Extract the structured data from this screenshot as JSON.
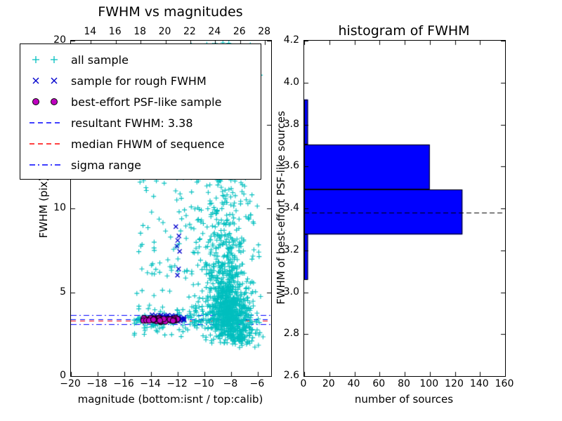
{
  "chart_data": [
    {
      "type": "scatter",
      "title": "FWHM vs magnitudes",
      "xlabel": "magnitude (bottom:isnt / top:calib)",
      "ylabel": "FWHM (pix)",
      "xlim": [
        -20,
        -5
      ],
      "ylim": [
        0,
        20
      ],
      "x_ticks_bottom": [
        -20,
        -18,
        -16,
        -14,
        -12,
        -10,
        -8,
        -6
      ],
      "x_ticks_top": {
        "lim": [
          12.4,
          28.5
        ],
        "ticks": [
          14,
          16,
          18,
          20,
          22,
          24,
          26,
          28
        ]
      },
      "y_ticks": [
        0,
        5,
        10,
        15,
        20
      ],
      "grid": false,
      "series": [
        {
          "name": "all sample",
          "marker": "plus",
          "color": "#00bfbf",
          "clusters": [
            {
              "n": 650,
              "x": [
                "gauss",
                -8.2,
                0.75
              ],
              "y": [
                "gauss",
                3.9,
                1.0
              ],
              "yclip": [
                1.9,
                7.5
              ]
            },
            {
              "n": 320,
              "x": [
                "gauss",
                -8.5,
                1.0
              ],
              "y": [
                "gauss",
                6.8,
                2.0
              ],
              "yclip": [
                2.2,
                13
              ]
            },
            {
              "n": 120,
              "x": [
                "gauss",
                -8.8,
                1.2
              ],
              "y": [
                "uniform",
                9,
                16
              ]
            },
            {
              "n": 55,
              "x": [
                "gauss",
                -8.9,
                1.3
              ],
              "y": [
                "uniform",
                15.5,
                20
              ]
            },
            {
              "n": 200,
              "x": [
                "uniform",
                -15.3,
                -6.0
              ],
              "y": [
                "gauss",
                3.35,
                0.45
              ]
            },
            {
              "n": 85,
              "x": [
                "uniform",
                -15.1,
                -10.3
              ],
              "y": [
                "uniform",
                4.5,
                12.5
              ]
            },
            {
              "n": 75,
              "x": [
                "gauss",
                -7.2,
                0.8
              ],
              "y": [
                "gauss",
                2.4,
                0.35
              ],
              "yclip": [
                1.6,
                3.2
              ]
            }
          ]
        },
        {
          "name": "sample for rough FWHM",
          "marker": "x",
          "color": "#0000cd",
          "clusters": [
            {
              "n": 7,
              "x": [
                "gauss",
                -12.05,
                0.12
              ],
              "y": [
                "uniform",
                5.7,
                9.2
              ]
            },
            {
              "n": 70,
              "x": [
                "uniform",
                -14.6,
                -11.5
              ],
              "y": [
                "gauss",
                3.42,
                0.1
              ]
            }
          ]
        },
        {
          "name": "best-effort PSF-like sample",
          "marker": "circle",
          "color": "#bf00bf",
          "edge": "#000000",
          "clusters": [
            {
              "n": 50,
              "x": [
                "uniform",
                -14.6,
                -12.0
              ],
              "y": [
                "gauss",
                3.38,
                0.05
              ]
            }
          ]
        }
      ],
      "lines": [
        {
          "name": "resultant-fwhm-line",
          "y": 3.38,
          "color": "#0000ff",
          "style": "dashed"
        },
        {
          "name": "median-fwhm-line",
          "y": 3.3,
          "color": "#ff0000",
          "style": "dashed"
        },
        {
          "name": "sigma-upper-line",
          "y": 3.66,
          "color": "#0000ff",
          "style": "dashdot"
        },
        {
          "name": "sigma-lower-line",
          "y": 3.1,
          "color": "#0000ff",
          "style": "dashdot"
        }
      ],
      "legend": {
        "position": "upper left",
        "items": [
          {
            "label": "all sample",
            "marker": "plus",
            "color": "#00bfbf"
          },
          {
            "label": "sample for rough FWHM",
            "marker": "x",
            "color": "#0000cd"
          },
          {
            "label": "best-effort PSF-like sample",
            "marker": "circle",
            "color": "#bf00bf",
            "edge": "#000000"
          },
          {
            "label": "resultant FWHM: 3.38",
            "marker": "line",
            "style": "dashed",
            "color": "#0000ff"
          },
          {
            "label": "median FHWM of sequence",
            "marker": "line",
            "style": "dashed",
            "color": "#ff0000"
          },
          {
            "label": "sigma range",
            "marker": "line",
            "style": "dashdot",
            "color": "#0000ff"
          }
        ]
      }
    },
    {
      "type": "bar",
      "orientation": "horizontal",
      "title": "histogram of FWHM",
      "xlabel": "number of sources",
      "ylabel": "FWHM of best-effort PSF-like sources",
      "xlim": [
        0,
        160
      ],
      "ylim": [
        2.6,
        4.2
      ],
      "x_ticks": [
        0,
        20,
        40,
        60,
        80,
        100,
        120,
        140,
        160
      ],
      "y_ticks": [
        2.6,
        2.8,
        3.0,
        3.2,
        3.4,
        3.6,
        3.8,
        4.0,
        4.2
      ],
      "grid": false,
      "bins": {
        "edges": [
          3.06,
          3.275,
          3.49,
          3.705,
          3.92
        ],
        "values": [
          3,
          126,
          100,
          3
        ]
      },
      "bar_color": "#0000ff",
      "bar_edge": "#000000",
      "median_line": {
        "y": 3.38,
        "style": "dashed",
        "color": "#000000"
      }
    }
  ]
}
